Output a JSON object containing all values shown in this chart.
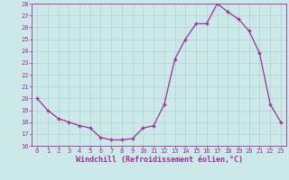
{
  "x": [
    0,
    1,
    2,
    3,
    4,
    5,
    6,
    7,
    8,
    9,
    10,
    11,
    12,
    13,
    14,
    15,
    16,
    17,
    18,
    19,
    20,
    21,
    22,
    23
  ],
  "y": [
    20,
    19,
    18.3,
    18,
    17.7,
    17.5,
    16.7,
    16.5,
    16.5,
    16.6,
    17.5,
    17.7,
    19.5,
    23.3,
    25,
    26.3,
    26.3,
    28,
    27.3,
    26.7,
    25.7,
    23.8,
    19.5,
    18
  ],
  "line_color": "#993399",
  "marker": "+",
  "bg_color": "#cce8e8",
  "grid_color": "#aacccc",
  "xlabel": "Windchill (Refroidissement éolien,°C)",
  "ylim": [
    16,
    28
  ],
  "xlim_min": -0.5,
  "xlim_max": 23.5,
  "yticks": [
    16,
    17,
    18,
    19,
    20,
    21,
    22,
    23,
    24,
    25,
    26,
    27,
    28
  ],
  "xticks": [
    0,
    1,
    2,
    3,
    4,
    5,
    6,
    7,
    8,
    9,
    10,
    11,
    12,
    13,
    14,
    15,
    16,
    17,
    18,
    19,
    20,
    21,
    22,
    23
  ],
  "tick_color": "#993399",
  "label_color": "#993399",
  "font": "monospace",
  "xlabel_fontsize": 6.0,
  "tick_fontsize": 5.0,
  "marker_size": 3.5,
  "line_width": 0.9
}
